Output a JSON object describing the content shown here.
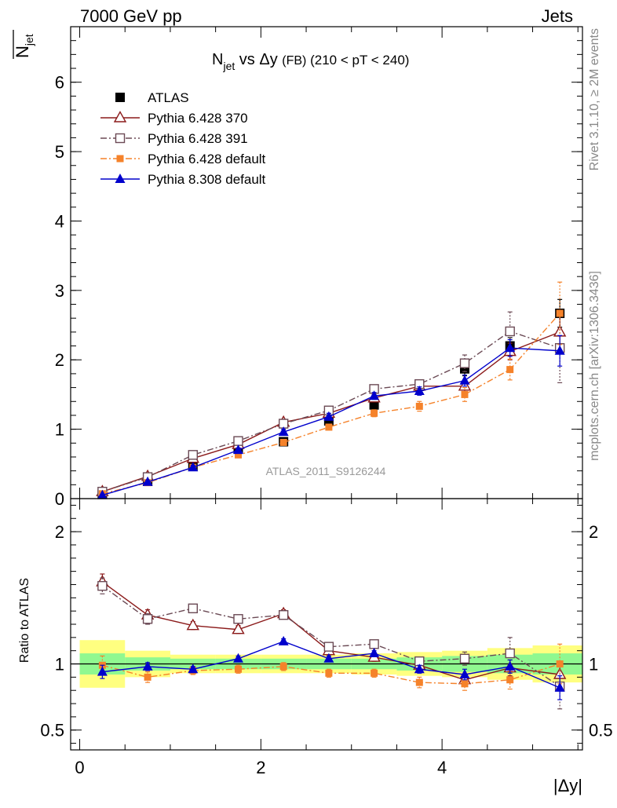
{
  "header": {
    "energy_label": "7000 GeV pp",
    "category_label": "Jets"
  },
  "side_labels": {
    "rivet": "Rivet 3.1.10, ≥ 2M events",
    "mcplots": "mcplots.cern.ch [arXiv:1306.3436]"
  },
  "watermark": "ATLAS_2011_S9126244",
  "chart_data": [
    {
      "type": "line",
      "title_main": "N",
      "title_sub": "jet",
      "title_mid": " vs Δy ",
      "title_fb": "(FB)",
      "title_range": " (210 < pT < 240)",
      "ylabel_main": "N",
      "ylabel_sub": "jet",
      "xlim": [
        -0.1,
        5.55
      ],
      "ylim": [
        0,
        6.8
      ],
      "yticks": [
        0,
        1,
        2,
        3,
        4,
        5,
        6
      ],
      "ytick_labels": [
        "0",
        "1",
        "2",
        "3",
        "4",
        "5",
        "6"
      ],
      "x": [
        0.25,
        0.75,
        1.25,
        1.75,
        2.25,
        2.75,
        3.25,
        3.75,
        4.25,
        4.75,
        5.3
      ],
      "legend_position": "top-left",
      "series": [
        {
          "name": "ATLAS",
          "color": "#000000",
          "marker": "filled-square",
          "line": "none",
          "values": [
            0.07,
            0.25,
            0.47,
            0.72,
            0.82,
            1.12,
            1.35,
            1.62,
            1.87,
            2.2,
            2.67
          ],
          "errors": [
            0.02,
            0.02,
            0.03,
            0.04,
            0.05,
            0.06,
            0.07,
            0.08,
            0.1,
            0.12,
            0.2
          ]
        },
        {
          "name": "Pythia 6.428 370",
          "color": "#8b1a1a",
          "marker": "open-triangle",
          "line": "solid",
          "values": [
            0.1,
            0.32,
            0.58,
            0.78,
            1.1,
            1.23,
            1.45,
            1.62,
            1.62,
            2.12,
            2.4
          ],
          "errors": [
            0.01,
            0.02,
            0.03,
            0.04,
            0.04,
            0.05,
            0.05,
            0.06,
            0.08,
            0.12,
            0.25
          ]
        },
        {
          "name": "Pythia 6.428 391",
          "color": "#6b4a55",
          "marker": "open-square",
          "line": "dashdot",
          "values": [
            0.1,
            0.31,
            0.63,
            0.83,
            1.08,
            1.27,
            1.58,
            1.65,
            1.95,
            2.41,
            2.17
          ],
          "errors": [
            0.01,
            0.02,
            0.03,
            0.04,
            0.04,
            0.05,
            0.05,
            0.06,
            0.12,
            0.28,
            0.5
          ]
        },
        {
          "name": "Pythia 6.428 default",
          "color": "#f5822a",
          "marker": "filled-square-small",
          "line": "dashdot",
          "values": [
            0.07,
            0.23,
            0.45,
            0.63,
            0.81,
            1.03,
            1.23,
            1.33,
            1.5,
            1.86,
            2.67
          ],
          "errors": [
            0.01,
            0.02,
            0.03,
            0.03,
            0.04,
            0.04,
            0.05,
            0.07,
            0.1,
            0.15,
            0.45
          ]
        },
        {
          "name": "Pythia 8.308 default",
          "color": "#0000cc",
          "marker": "filled-triangle",
          "line": "solid",
          "values": [
            0.05,
            0.24,
            0.45,
            0.7,
            0.96,
            1.18,
            1.48,
            1.55,
            1.7,
            2.17,
            2.13
          ],
          "errors": [
            0.01,
            0.02,
            0.03,
            0.03,
            0.04,
            0.05,
            0.05,
            0.06,
            0.08,
            0.12,
            0.22
          ]
        }
      ]
    },
    {
      "type": "line",
      "ylabel": "Ratio to ATLAS",
      "xlabel": "|Δy|",
      "xlim": [
        -0.1,
        5.55
      ],
      "ylim": [
        0.35,
        2.25
      ],
      "yticks": [
        0.5,
        1,
        2
      ],
      "ytick_labels": [
        "0.5",
        "1",
        "2"
      ],
      "xticks": [
        0,
        2,
        4
      ],
      "xtick_labels": [
        "0",
        "2",
        "4"
      ],
      "reference_line": 1.0,
      "bands": {
        "x_edges": [
          0,
          0.5,
          1,
          1.5,
          2,
          2.5,
          3,
          3.5,
          4,
          4.5,
          5,
          5.55
        ],
        "yellow_halfwidth": [
          0.18,
          0.1,
          0.07,
          0.07,
          0.07,
          0.07,
          0.08,
          0.09,
          0.1,
          0.12,
          0.14,
          0.18
        ],
        "green_halfwidth": [
          0.08,
          0.05,
          0.04,
          0.04,
          0.04,
          0.04,
          0.04,
          0.05,
          0.06,
          0.07,
          0.08,
          0.09
        ],
        "yellow_color": "#ffff80",
        "green_color": "#90f890"
      },
      "x": [
        0.25,
        0.75,
        1.25,
        1.75,
        2.25,
        2.75,
        3.25,
        3.75,
        4.25,
        4.75,
        5.3
      ],
      "series": [
        {
          "name": "ATLAS",
          "color": "#000000",
          "marker": "none",
          "line": "none",
          "values": [
            1,
            1,
            1,
            1,
            1,
            1,
            1,
            1,
            1,
            1,
            1
          ],
          "errors": [
            0,
            0,
            0,
            0,
            0,
            0,
            0,
            0,
            0,
            0,
            0
          ]
        },
        {
          "name": "Pythia 6.428 370",
          "color": "#8b1a1a",
          "marker": "open-triangle",
          "line": "solid",
          "values": [
            1.62,
            1.37,
            1.29,
            1.26,
            1.38,
            1.1,
            1.05,
            0.99,
            0.88,
            0.97,
            0.92
          ],
          "errors": [
            0.06,
            0.04,
            0.03,
            0.03,
            0.03,
            0.03,
            0.03,
            0.03,
            0.04,
            0.06,
            0.08
          ]
        },
        {
          "name": "Pythia 6.428 391",
          "color": "#6b4a55",
          "marker": "open-square",
          "line": "dashdot",
          "values": [
            1.59,
            1.34,
            1.42,
            1.34,
            1.37,
            1.13,
            1.15,
            1.02,
            1.04,
            1.08,
            0.83
          ],
          "errors": [
            0.06,
            0.04,
            0.03,
            0.03,
            0.03,
            0.03,
            0.03,
            0.03,
            0.05,
            0.12,
            0.17
          ]
        },
        {
          "name": "Pythia 6.428 default",
          "color": "#f5822a",
          "marker": "filled-square-small",
          "line": "dashdot",
          "values": [
            0.99,
            0.9,
            0.95,
            0.96,
            0.98,
            0.93,
            0.93,
            0.86,
            0.85,
            0.88,
            1.0
          ],
          "errors": [
            0.07,
            0.04,
            0.03,
            0.03,
            0.03,
            0.03,
            0.03,
            0.04,
            0.05,
            0.07,
            0.15
          ]
        },
        {
          "name": "Pythia 8.308 default",
          "color": "#0000cc",
          "marker": "filled-triangle",
          "line": "solid",
          "values": [
            0.94,
            0.98,
            0.96,
            1.04,
            1.17,
            1.04,
            1.08,
            0.96,
            0.92,
            0.98,
            0.82
          ],
          "errors": [
            0.05,
            0.03,
            0.02,
            0.02,
            0.02,
            0.02,
            0.02,
            0.03,
            0.04,
            0.05,
            0.09
          ]
        }
      ]
    }
  ]
}
